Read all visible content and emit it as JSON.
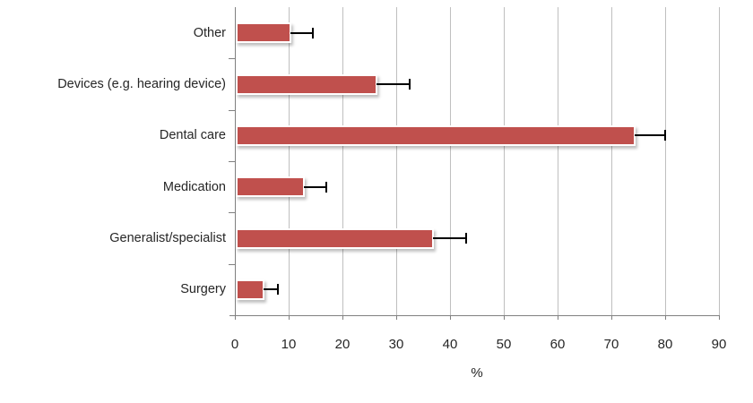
{
  "chart_data": {
    "type": "bar",
    "orientation": "horizontal",
    "title": "",
    "categories": [
      "Other",
      "Devices (e.g. hearing device)",
      "Dental care",
      "Medication",
      "Generalist/specialist",
      "Surgery"
    ],
    "values": [
      10,
      26,
      74,
      12.5,
      36.5,
      5
    ],
    "error_plus": [
      4.5,
      6.5,
      6,
      4.5,
      6.5,
      3
    ],
    "xlabel": "%",
    "ylabel": "",
    "xlim": [
      0,
      90
    ],
    "xticks": [
      0,
      10,
      20,
      30,
      40,
      50,
      60,
      70,
      80,
      90
    ],
    "grid": "vertical-only",
    "legend": "none",
    "colors": {
      "bar_fill": "#C0504D",
      "bar_border": "#FFFFFF",
      "gridline": "#BFBFBF",
      "axis_line": "#808080",
      "error_bar": "#000000",
      "text": "#262626"
    }
  }
}
